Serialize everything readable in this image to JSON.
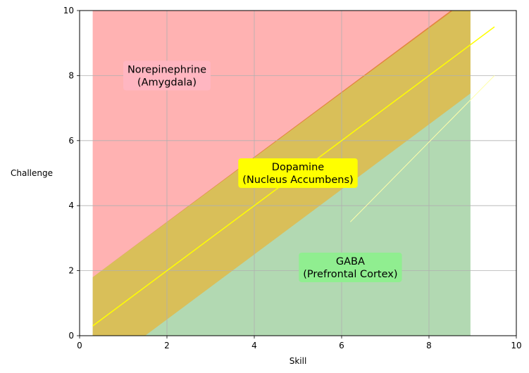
{
  "chart_data": {
    "type": "area",
    "title": "",
    "xlabel": "Skill",
    "ylabel": "Challenge",
    "xlim": [
      0,
      10
    ],
    "ylim": [
      0,
      10
    ],
    "xticks": [
      0,
      2,
      4,
      6,
      8,
      10
    ],
    "yticks": [
      0,
      2,
      4,
      6,
      8,
      10
    ],
    "grid": true,
    "x_range": [
      0.3,
      8.95
    ],
    "regions": [
      {
        "label": "Norepinephrine\n(Amygdala)",
        "color": "#ff0000",
        "opacity": 0.3,
        "box_color": "#ffb6c1",
        "lower_boundary": [
          [
            0.3,
            1.8
          ],
          [
            8.95,
            10.4
          ]
        ],
        "upper_value": 10,
        "label_anchor": [
          2.0,
          8.0
        ]
      },
      {
        "label": "Dopamine\n(Nucleus Accumbens)",
        "color": "#ffa500",
        "opacity": 0.5,
        "box_color": "#ffff00",
        "boundary_low": [
          [
            0.3,
            -1.2
          ],
          [
            9.0,
            7.5
          ]
        ],
        "boundary_high": [
          [
            0.3,
            1.8
          ],
          [
            9.0,
            10.5
          ]
        ],
        "label_anchor": [
          5.0,
          5.0
        ]
      },
      {
        "label": "GABA\n(Prefrontal Cortex)",
        "color": "#008000",
        "opacity": 0.3,
        "box_color": "#90ee90",
        "upper_boundary": [
          [
            0.3,
            1.8
          ],
          [
            8.95,
            10.45
          ]
        ],
        "label_anchor": [
          6.2,
          2.1
        ]
      }
    ],
    "lines": [
      {
        "name": "optimal",
        "color": "#ffff00",
        "width": 1.5,
        "points": [
          [
            0.3,
            0.3
          ],
          [
            9.5,
            9.5
          ]
        ]
      },
      {
        "name": "lower-bound",
        "color": "#ffffaa",
        "width": 1.0,
        "points": [
          [
            6.2,
            3.5
          ],
          [
            9.5,
            8.0
          ]
        ]
      }
    ]
  }
}
